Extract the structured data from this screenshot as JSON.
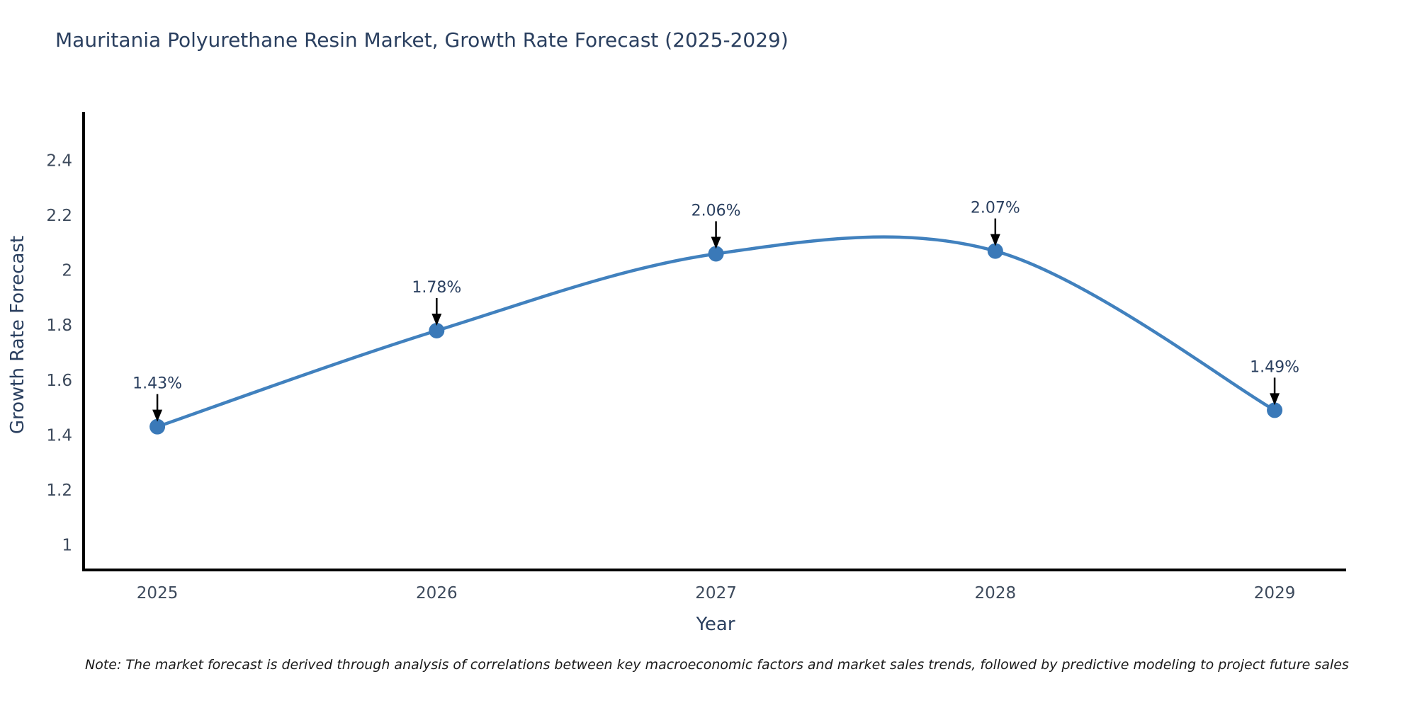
{
  "title": "Mauritania Polyurethane Resin Market, Growth Rate Forecast (2025-2029)",
  "footnote": "Note: The market forecast is derived through analysis of correlations between key macroeconomic factors and market sales trends, followed by predictive modeling to project future sales",
  "chart_data": {
    "type": "line",
    "title": "Mauritania Polyurethane Resin Market, Growth Rate Forecast (2025-2029)",
    "xlabel": "Year",
    "ylabel": "Growth Rate Forecast",
    "x": [
      2025,
      2026,
      2027,
      2028,
      2029
    ],
    "values": [
      1.43,
      1.78,
      2.06,
      2.07,
      1.49
    ],
    "point_labels": [
      "1.43%",
      "1.78%",
      "2.06%",
      "2.07%",
      "1.49%"
    ],
    "xtick_labels": [
      "2025",
      "2026",
      "2027",
      "2028",
      "2029"
    ],
    "ytick_values": [
      1,
      1.2,
      1.4,
      1.6,
      1.8,
      2,
      2.2,
      2.4
    ],
    "ytick_labels": [
      "1",
      "1.2",
      "1.4",
      "1.6",
      "1.8",
      "2",
      "2.2",
      "2.4"
    ],
    "xlim": [
      2024.736,
      2029.256
    ],
    "ylim": [
      0.908,
      2.572
    ],
    "grid": false,
    "legend": "none",
    "line_shape": "spline",
    "marker_size": 11,
    "colors": {
      "line": "#4181be",
      "marker": "#3a79b8",
      "arrow": "#000000",
      "axis": "#000000",
      "title": "#2a3f5f",
      "tick": "#3d4a5c",
      "annotation": "#2a3f5f"
    }
  }
}
